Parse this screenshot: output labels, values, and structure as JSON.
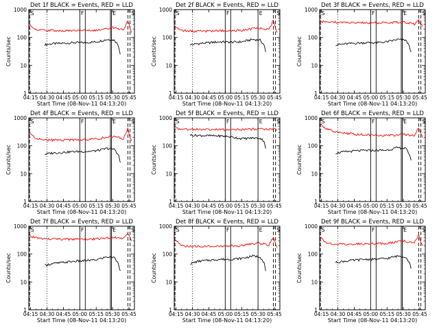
{
  "figure": {
    "xlabel": "Start Time (08-Nov-11 04:13:20)",
    "ylabel": "Counts/sec",
    "x_tick_labels": [
      "04:15",
      "04:30",
      "04:45",
      "05:00",
      "05:15",
      "05:30",
      "05:45"
    ],
    "y_tick_labels": [
      "1",
      "10",
      "100",
      "1000"
    ],
    "colors": {
      "events": "#000000",
      "lld": "#ff0000"
    }
  },
  "chart_data": [
    {
      "type": "line",
      "title": "Det 1f BLACK = Events, RED = LLD",
      "y_scale": "log",
      "ylim": [
        1,
        1000
      ],
      "xlim": [
        "04:13:20",
        "05:50:00"
      ],
      "series": [
        {
          "name": "Events",
          "x": [
            "04:28:00",
            "04:35:00",
            "04:45:00",
            "04:55:00",
            "05:05:00",
            "05:15:00",
            "05:25:00",
            "05:32:00",
            "05:35:30",
            "05:37:00"
          ],
          "values": [
            55,
            60,
            62,
            65,
            65,
            70,
            85,
            80,
            50,
            25
          ]
        },
        {
          "name": "LLD",
          "x": [
            "04:13:20",
            "04:20:00",
            "04:30:00",
            "04:45:00",
            "05:00:00",
            "05:15:00",
            "05:30:00",
            "05:40:00",
            "05:44:00",
            "05:46:00",
            "05:47:30"
          ],
          "values": [
            280,
            190,
            180,
            175,
            180,
            185,
            230,
            190,
            400,
            230,
            150
          ]
        }
      ],
      "markers": [
        {
          "label": "S",
          "time": "04:14:00",
          "style": "dashed"
        },
        {
          "label": "",
          "time": "04:30:00",
          "style": "dotted"
        },
        {
          "label": "F",
          "time": "05:00:00",
          "style": "solid"
        },
        {
          "label": "",
          "time": "05:05:00",
          "style": "solid"
        },
        {
          "label": "",
          "time": "05:28:00",
          "style": "solid"
        },
        {
          "label": "E",
          "time": "05:29:00",
          "style": "solid"
        },
        {
          "label": "",
          "time": "05:44:00",
          "style": "dashed"
        },
        {
          "label": "S",
          "time": "05:46:00",
          "style": "dashed"
        }
      ]
    },
    {
      "type": "line",
      "title": "Det 2f BLACK = Events, RED = LLD",
      "y_scale": "log",
      "ylim": [
        1,
        1000
      ],
      "xlim": [
        "04:13:20",
        "05:50:00"
      ],
      "series": [
        {
          "name": "Events",
          "x": [
            "04:28:00",
            "04:35:00",
            "04:45:00",
            "04:55:00",
            "05:05:00",
            "05:15:00",
            "05:25:00",
            "05:32:00",
            "05:35:30",
            "05:37:00"
          ],
          "values": [
            55,
            60,
            65,
            70,
            68,
            70,
            85,
            80,
            55,
            30
          ]
        },
        {
          "name": "LLD",
          "x": [
            "04:13:20",
            "04:20:00",
            "04:30:00",
            "04:45:00",
            "05:00:00",
            "05:15:00",
            "05:30:00",
            "05:40:00",
            "05:44:00",
            "05:46:00",
            "05:47:30"
          ],
          "values": [
            260,
            180,
            170,
            170,
            175,
            180,
            220,
            190,
            420,
            220,
            150
          ]
        }
      ],
      "markers": [
        {
          "label": "S",
          "time": "04:14:00",
          "style": "dashed"
        },
        {
          "label": "",
          "time": "04:30:00",
          "style": "dotted"
        },
        {
          "label": "F",
          "time": "05:00:00",
          "style": "solid"
        },
        {
          "label": "",
          "time": "05:05:00",
          "style": "solid"
        },
        {
          "label": "E",
          "time": "05:30:00",
          "style": "solid"
        },
        {
          "label": "",
          "time": "05:44:00",
          "style": "dashed"
        },
        {
          "label": "S",
          "time": "05:46:00",
          "style": "dashed"
        }
      ]
    },
    {
      "type": "line",
      "title": "Det 3f BLACK = Events, RED = LLD",
      "y_scale": "log",
      "ylim": [
        1,
        1000
      ],
      "xlim": [
        "04:13:20",
        "05:50:00"
      ],
      "series": [
        {
          "name": "Events",
          "x": [
            "04:28:00",
            "04:35:00",
            "04:45:00",
            "04:55:00",
            "05:05:00",
            "05:15:00",
            "05:25:00",
            "05:32:00",
            "05:35:30",
            "05:37:00"
          ],
          "values": [
            55,
            58,
            62,
            65,
            65,
            70,
            85,
            80,
            50,
            30
          ]
        },
        {
          "name": "LLD",
          "x": [
            "04:13:20",
            "04:20:00",
            "04:30:00",
            "04:45:00",
            "05:00:00",
            "05:15:00",
            "05:30:00",
            "05:40:00",
            "05:44:00",
            "05:46:00",
            "05:47:30"
          ],
          "values": [
            380,
            360,
            350,
            340,
            335,
            340,
            360,
            300,
            420,
            300,
            250
          ]
        }
      ],
      "markers": [
        {
          "label": "S",
          "time": "04:14:00",
          "style": "dashed"
        },
        {
          "label": "",
          "time": "04:30:00",
          "style": "dotted"
        },
        {
          "label": "F",
          "time": "05:00:00",
          "style": "solid"
        },
        {
          "label": "",
          "time": "05:05:00",
          "style": "solid"
        },
        {
          "label": "",
          "time": "05:28:00",
          "style": "solid"
        },
        {
          "label": "E",
          "time": "05:29:00",
          "style": "solid"
        },
        {
          "label": "",
          "time": "05:44:00",
          "style": "dashed"
        },
        {
          "label": "S",
          "time": "05:46:00",
          "style": "dashed"
        }
      ]
    },
    {
      "type": "line",
      "title": "Det 4f BLACK = Events, RED = LLD",
      "y_scale": "log",
      "ylim": [
        1,
        1000
      ],
      "xlim": [
        "04:13:20",
        "05:50:00"
      ],
      "series": [
        {
          "name": "Events",
          "x": [
            "04:28:00",
            "04:35:00",
            "04:45:00",
            "04:55:00",
            "05:05:00",
            "05:15:00",
            "05:25:00",
            "05:32:00",
            "05:35:30",
            "05:37:00"
          ],
          "values": [
            50,
            55,
            58,
            62,
            62,
            66,
            80,
            75,
            45,
            25
          ]
        },
        {
          "name": "LLD",
          "x": [
            "04:13:20",
            "04:20:00",
            "04:30:00",
            "04:45:00",
            "05:00:00",
            "05:15:00",
            "05:30:00",
            "05:40:00",
            "05:44:00",
            "05:46:00",
            "05:47:30"
          ],
          "values": [
            300,
            180,
            160,
            160,
            165,
            175,
            220,
            180,
            420,
            200,
            150
          ]
        }
      ],
      "markers": [
        {
          "label": "S",
          "time": "04:14:00",
          "style": "dashed"
        },
        {
          "label": "",
          "time": "04:30:00",
          "style": "dotted"
        },
        {
          "label": "F",
          "time": "05:00:00",
          "style": "solid"
        },
        {
          "label": "",
          "time": "05:05:00",
          "style": "solid"
        },
        {
          "label": "",
          "time": "05:28:00",
          "style": "solid"
        },
        {
          "label": "E",
          "time": "05:29:00",
          "style": "solid"
        },
        {
          "label": "",
          "time": "05:44:00",
          "style": "dashed"
        },
        {
          "label": "S",
          "time": "05:46:00",
          "style": "dashed"
        }
      ]
    },
    {
      "type": "line",
      "title": "Det 5f BLACK = Events, RED = LLD",
      "y_scale": "log",
      "ylim": [
        1,
        1000
      ],
      "xlim": [
        "04:13:20",
        "05:50:00"
      ],
      "series": [
        {
          "name": "Events",
          "x": [
            "04:28:00",
            "04:35:00",
            "04:45:00",
            "04:55:00",
            "05:05:00",
            "05:15:00",
            "05:25:00",
            "05:32:00",
            "05:35:30",
            "05:37:00"
          ],
          "values": [
            240,
            235,
            230,
            225,
            210,
            180,
            190,
            185,
            150,
            80
          ]
        },
        {
          "name": "LLD",
          "x": [
            "04:13:20",
            "04:20:00",
            "04:30:00",
            "04:45:00",
            "05:00:00",
            "05:15:00",
            "05:30:00",
            "05:40:00",
            "05:44:00",
            "05:46:00",
            "05:47:30"
          ],
          "values": [
            420,
            400,
            390,
            385,
            380,
            380,
            400,
            380,
            420,
            380,
            360
          ]
        }
      ],
      "markers": [
        {
          "label": "S",
          "time": "04:14:00",
          "style": "dashed"
        },
        {
          "label": "",
          "time": "04:30:00",
          "style": "dotted"
        },
        {
          "label": "F",
          "time": "05:00:00",
          "style": "solid"
        },
        {
          "label": "",
          "time": "05:05:00",
          "style": "solid"
        },
        {
          "label": "E",
          "time": "05:30:00",
          "style": "solid"
        },
        {
          "label": "",
          "time": "05:44:00",
          "style": "dashed"
        },
        {
          "label": "S",
          "time": "05:46:00",
          "style": "dashed"
        }
      ]
    },
    {
      "type": "line",
      "title": "Det 6f BLACK = Events, RED = LLD",
      "y_scale": "log",
      "ylim": [
        1,
        1000
      ],
      "xlim": [
        "04:13:20",
        "05:50:00"
      ],
      "series": [
        {
          "name": "Events",
          "x": [
            "04:28:00",
            "04:35:00",
            "04:45:00",
            "04:55:00",
            "05:05:00",
            "05:15:00",
            "05:25:00",
            "05:32:00",
            "05:35:30",
            "05:37:00"
          ],
          "values": [
            55,
            60,
            65,
            68,
            68,
            70,
            85,
            80,
            50,
            30
          ]
        },
        {
          "name": "LLD",
          "x": [
            "04:13:20",
            "04:20:00",
            "04:30:00",
            "04:45:00",
            "05:00:00",
            "05:15:00",
            "05:30:00",
            "05:40:00",
            "05:44:00",
            "05:46:00",
            "05:47:30"
          ],
          "values": [
            600,
            400,
            300,
            260,
            240,
            230,
            260,
            230,
            450,
            260,
            200
          ]
        }
      ],
      "markers": [
        {
          "label": "S",
          "time": "04:14:00",
          "style": "dashed"
        },
        {
          "label": "",
          "time": "04:30:00",
          "style": "dotted"
        },
        {
          "label": "F",
          "time": "05:00:00",
          "style": "solid"
        },
        {
          "label": "",
          "time": "05:05:00",
          "style": "solid"
        },
        {
          "label": "",
          "time": "05:28:00",
          "style": "solid"
        },
        {
          "label": "E",
          "time": "05:29:00",
          "style": "solid"
        },
        {
          "label": "",
          "time": "05:44:00",
          "style": "dashed"
        },
        {
          "label": "S",
          "time": "05:46:00",
          "style": "dashed"
        }
      ]
    },
    {
      "type": "line",
      "title": "Det 7f BLACK = Events, RED = LLD",
      "y_scale": "log",
      "ylim": [
        1,
        1000
      ],
      "xlim": [
        "04:13:20",
        "05:50:00"
      ],
      "series": [
        {
          "name": "Events",
          "x": [
            "04:28:00",
            "04:35:00",
            "04:45:00",
            "04:55:00",
            "05:05:00",
            "05:15:00",
            "05:25:00",
            "05:32:00",
            "05:35:30",
            "05:37:00"
          ],
          "values": [
            40,
            45,
            50,
            55,
            58,
            62,
            80,
            75,
            45,
            25
          ]
        },
        {
          "name": "LLD",
          "x": [
            "04:13:20",
            "04:20:00",
            "04:30:00",
            "04:45:00",
            "05:00:00",
            "05:15:00",
            "05:30:00",
            "05:40:00",
            "05:44:00",
            "05:46:00",
            "05:47:30"
          ],
          "values": [
            450,
            380,
            350,
            340,
            345,
            350,
            400,
            360,
            550,
            380,
            300
          ]
        }
      ],
      "markers": [
        {
          "label": "S",
          "time": "04:14:00",
          "style": "dashed"
        },
        {
          "label": "",
          "time": "04:30:00",
          "style": "dotted"
        },
        {
          "label": "F",
          "time": "05:00:00",
          "style": "solid"
        },
        {
          "label": "",
          "time": "05:05:00",
          "style": "solid"
        },
        {
          "label": "",
          "time": "05:28:00",
          "style": "solid"
        },
        {
          "label": "E",
          "time": "05:29:00",
          "style": "solid"
        },
        {
          "label": "",
          "time": "05:44:00",
          "style": "dashed"
        },
        {
          "label": "S",
          "time": "05:46:00",
          "style": "dashed"
        }
      ]
    },
    {
      "type": "line",
      "title": "Det 8f BLACK = Events, RED = LLD",
      "y_scale": "log",
      "ylim": [
        1,
        1000
      ],
      "xlim": [
        "04:13:20",
        "05:50:00"
      ],
      "series": [
        {
          "name": "Events",
          "x": [
            "04:28:00",
            "04:35:00",
            "04:45:00",
            "04:55:00",
            "05:05:00",
            "05:15:00",
            "05:25:00",
            "05:32:00",
            "05:35:30",
            "05:37:00"
          ],
          "values": [
            45,
            55,
            60,
            65,
            65,
            70,
            85,
            80,
            50,
            25
          ]
        },
        {
          "name": "LLD",
          "x": [
            "04:13:20",
            "04:20:00",
            "04:30:00",
            "04:45:00",
            "05:00:00",
            "05:15:00",
            "05:30:00",
            "05:40:00",
            "05:44:00",
            "05:46:00",
            "05:47:30"
          ],
          "values": [
            350,
            200,
            190,
            190,
            195,
            200,
            250,
            210,
            420,
            230,
            170
          ]
        }
      ],
      "markers": [
        {
          "label": "S",
          "time": "04:14:00",
          "style": "dashed"
        },
        {
          "label": "",
          "time": "04:30:00",
          "style": "dotted"
        },
        {
          "label": "F",
          "time": "05:00:00",
          "style": "solid"
        },
        {
          "label": "",
          "time": "05:05:00",
          "style": "solid"
        },
        {
          "label": "E",
          "time": "05:30:00",
          "style": "solid"
        },
        {
          "label": "",
          "time": "05:44:00",
          "style": "dashed"
        },
        {
          "label": "S",
          "time": "05:46:00",
          "style": "dashed"
        }
      ]
    },
    {
      "type": "line",
      "title": "Det 9f BLACK = Events, RED = LLD",
      "y_scale": "log",
      "ylim": [
        1,
        1000
      ],
      "xlim": [
        "04:13:20",
        "05:50:00"
      ],
      "series": [
        {
          "name": "Events",
          "x": [
            "04:28:00",
            "04:35:00",
            "04:45:00",
            "04:55:00",
            "05:05:00",
            "05:15:00",
            "05:25:00",
            "05:32:00",
            "05:35:30",
            "05:37:00"
          ],
          "values": [
            50,
            55,
            60,
            65,
            65,
            70,
            85,
            80,
            50,
            30
          ]
        },
        {
          "name": "LLD",
          "x": [
            "04:13:20",
            "04:20:00",
            "04:30:00",
            "04:45:00",
            "05:00:00",
            "05:15:00",
            "05:30:00",
            "05:40:00",
            "05:44:00",
            "05:46:00",
            "05:47:30"
          ],
          "values": [
            400,
            240,
            230,
            230,
            235,
            240,
            300,
            250,
            500,
            280,
            200
          ]
        }
      ],
      "markers": [
        {
          "label": "S",
          "time": "04:14:00",
          "style": "dashed"
        },
        {
          "label": "",
          "time": "04:30:00",
          "style": "dotted"
        },
        {
          "label": "F",
          "time": "05:00:00",
          "style": "solid"
        },
        {
          "label": "",
          "time": "05:05:00",
          "style": "solid"
        },
        {
          "label": "",
          "time": "05:28:00",
          "style": "solid"
        },
        {
          "label": "E",
          "time": "05:29:00",
          "style": "solid"
        },
        {
          "label": "",
          "time": "05:44:00",
          "style": "dashed"
        },
        {
          "label": "S",
          "time": "05:46:00",
          "style": "dashed"
        }
      ]
    }
  ]
}
